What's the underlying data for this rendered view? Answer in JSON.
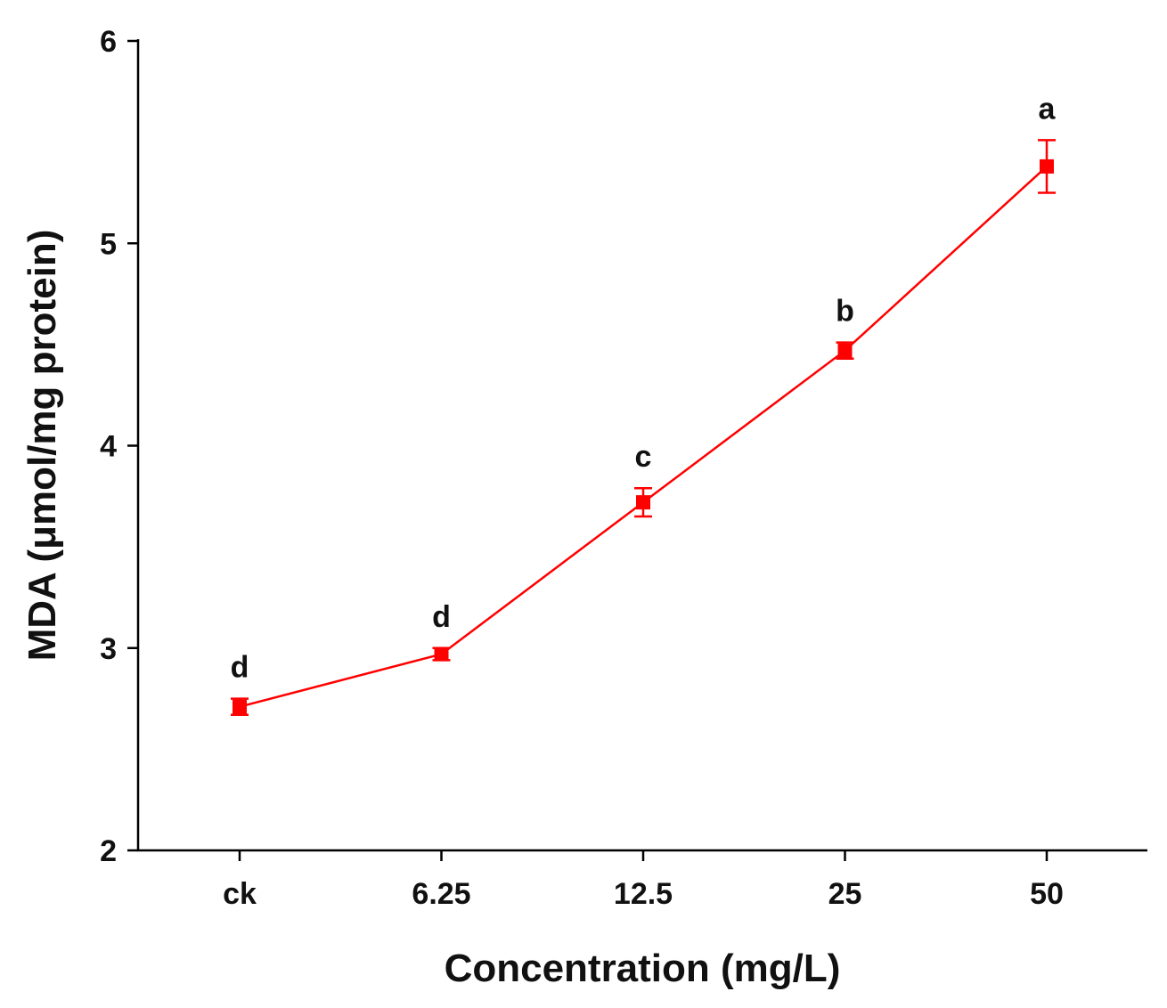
{
  "chart_data": {
    "type": "line",
    "title": "",
    "xlabel": "Concentration (mg/L)",
    "ylabel": "MDA (μmol/mg protein)",
    "categories": [
      "ck",
      "6.25",
      "12.5",
      "25",
      "50"
    ],
    "ylim": [
      2,
      6
    ],
    "yticks": [
      "2",
      "3",
      "4",
      "5",
      "6"
    ],
    "grid": false,
    "series": [
      {
        "name": "MDA",
        "color": "#ff0000",
        "marker": "square",
        "values": [
          2.71,
          2.97,
          3.72,
          4.47,
          5.38
        ],
        "errors": [
          0.04,
          0.03,
          0.07,
          0.04,
          0.13
        ],
        "significance": [
          "d",
          "d",
          "c",
          "b",
          "a"
        ]
      }
    ]
  }
}
